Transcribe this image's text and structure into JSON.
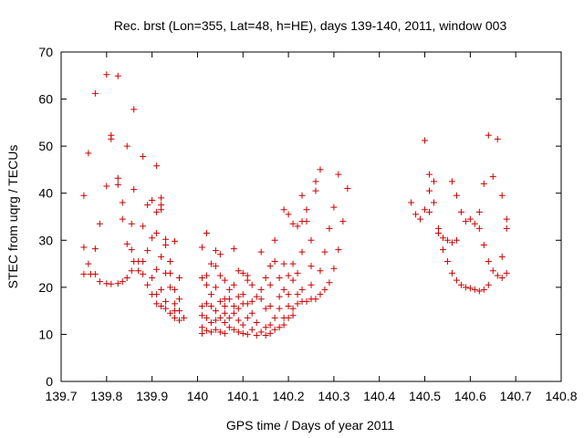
{
  "chart_data": {
    "type": "scatter",
    "title": "Rec. brst (Lon=355, Lat=48, h=HE), days 139-140, 2011, window 003",
    "xlabel": "GPS time / Days of year 2011",
    "ylabel": "STEC from uqrg / TECUs",
    "xlim": [
      139.7,
      140.8
    ],
    "ylim": [
      0,
      70
    ],
    "xticks": [
      "139.7",
      "139.8",
      "139.9",
      "140",
      "140.1",
      "140.2",
      "140.3",
      "140.4",
      "140.5",
      "140.6",
      "140.7",
      "140.8"
    ],
    "yticks": [
      "0",
      "10",
      "20",
      "30",
      "40",
      "50",
      "60",
      "70"
    ],
    "grid": false,
    "marker": "+",
    "series": [
      {
        "color": "#cc0000",
        "points": [
          [
            139.75,
            39.5
          ],
          [
            139.75,
            28.5
          ],
          [
            139.75,
            22.8
          ],
          [
            139.76,
            48.5
          ],
          [
            139.76,
            25.0
          ],
          [
            139.765,
            22.8
          ],
          [
            139.775,
            61.2
          ],
          [
            139.775,
            28.2
          ],
          [
            139.775,
            22.8
          ],
          [
            139.785,
            33.5
          ],
          [
            139.785,
            21.2
          ],
          [
            139.8,
            65.2
          ],
          [
            139.8,
            41.5
          ],
          [
            139.8,
            20.8
          ],
          [
            139.81,
            52.3
          ],
          [
            139.81,
            51.5
          ],
          [
            139.81,
            20.7
          ],
          [
            139.825,
            64.9
          ],
          [
            139.825,
            43.2
          ],
          [
            139.825,
            41.8
          ],
          [
            139.825,
            20.8
          ],
          [
            139.835,
            38.0
          ],
          [
            139.835,
            34.5
          ],
          [
            139.835,
            21.2
          ],
          [
            139.845,
            50.0
          ],
          [
            139.845,
            29.2
          ],
          [
            139.845,
            22.0
          ],
          [
            139.855,
            33.5
          ],
          [
            139.855,
            28.0
          ],
          [
            139.855,
            23.5
          ],
          [
            139.86,
            57.8
          ],
          [
            139.86,
            40.8
          ],
          [
            139.86,
            25.5
          ],
          [
            139.87,
            23.5
          ],
          [
            139.87,
            25.5
          ],
          [
            139.88,
            47.8
          ],
          [
            139.88,
            33.0
          ],
          [
            139.88,
            22.8
          ],
          [
            139.88,
            25.5
          ],
          [
            139.89,
            37.5
          ],
          [
            139.89,
            27.8
          ],
          [
            139.89,
            20.5
          ],
          [
            139.9,
            38.5
          ],
          [
            139.9,
            30.5
          ],
          [
            139.9,
            22.0
          ],
          [
            139.9,
            18.5
          ],
          [
            139.91,
            45.8
          ],
          [
            139.91,
            36.0
          ],
          [
            139.91,
            31.5
          ],
          [
            139.91,
            23.8
          ],
          [
            139.91,
            18.5
          ],
          [
            139.91,
            16.5
          ],
          [
            139.92,
            39.0
          ],
          [
            139.92,
            37.5
          ],
          [
            139.92,
            36.5
          ],
          [
            139.92,
            26.5
          ],
          [
            139.92,
            19.5
          ],
          [
            139.92,
            16.0
          ],
          [
            139.93,
            30.2
          ],
          [
            139.93,
            29.0
          ],
          [
            139.93,
            23.0
          ],
          [
            139.93,
            17.0
          ],
          [
            139.93,
            15.5
          ],
          [
            139.94,
            25.5
          ],
          [
            139.94,
            23.0
          ],
          [
            139.94,
            20.0
          ],
          [
            139.94,
            14.5
          ],
          [
            139.95,
            29.8
          ],
          [
            139.95,
            19.5
          ],
          [
            139.95,
            16.5
          ],
          [
            139.95,
            15.0
          ],
          [
            139.95,
            13.5
          ],
          [
            139.96,
            22.0
          ],
          [
            139.96,
            17.5
          ],
          [
            139.96,
            15.0
          ],
          [
            139.96,
            13.0
          ],
          [
            139.97,
            13.5
          ],
          [
            140.01,
            28.5
          ],
          [
            140.01,
            22.0
          ],
          [
            140.01,
            16.0
          ],
          [
            140.01,
            14.0
          ],
          [
            140.01,
            11.5
          ],
          [
            140.01,
            10.2
          ],
          [
            140.02,
            31.5
          ],
          [
            140.02,
            22.5
          ],
          [
            140.02,
            20.5
          ],
          [
            140.02,
            16.5
          ],
          [
            140.02,
            13.5
          ],
          [
            140.02,
            10.8
          ],
          [
            140.03,
            25.0
          ],
          [
            140.03,
            18.5
          ],
          [
            140.03,
            16.0
          ],
          [
            140.03,
            12.5
          ],
          [
            140.03,
            10.5
          ],
          [
            140.04,
            27.8
          ],
          [
            140.04,
            24.5
          ],
          [
            140.04,
            20.0
          ],
          [
            140.04,
            15.0
          ],
          [
            140.04,
            13.0
          ],
          [
            140.04,
            11.0
          ],
          [
            140.05,
            27.0
          ],
          [
            140.05,
            22.5
          ],
          [
            140.05,
            17.0
          ],
          [
            140.05,
            13.5
          ],
          [
            140.05,
            10.5
          ],
          [
            140.06,
            21.5
          ],
          [
            140.06,
            17.5
          ],
          [
            140.06,
            16.0
          ],
          [
            140.06,
            14.5
          ],
          [
            140.06,
            12.5
          ],
          [
            140.06,
            10.2
          ],
          [
            140.07,
            19.5
          ],
          [
            140.07,
            17.5
          ],
          [
            140.07,
            13.5
          ],
          [
            140.07,
            11.5
          ],
          [
            140.08,
            28.2
          ],
          [
            140.08,
            20.5
          ],
          [
            140.08,
            16.0
          ],
          [
            140.08,
            14.5
          ],
          [
            140.08,
            11.0
          ],
          [
            140.09,
            23.5
          ],
          [
            140.09,
            18.0
          ],
          [
            140.09,
            15.5
          ],
          [
            140.09,
            13.0
          ],
          [
            140.09,
            10.5
          ],
          [
            140.1,
            23.0
          ],
          [
            140.1,
            18.5
          ],
          [
            140.1,
            16.5
          ],
          [
            140.1,
            12.0
          ],
          [
            140.1,
            10.2
          ],
          [
            140.11,
            22.5
          ],
          [
            140.11,
            21.5
          ],
          [
            140.11,
            16.5
          ],
          [
            140.11,
            13.5
          ],
          [
            140.11,
            10.0
          ],
          [
            140.12,
            20.5
          ],
          [
            140.12,
            17.0
          ],
          [
            140.12,
            14.5
          ],
          [
            140.12,
            11.0
          ],
          [
            140.13,
            18.0
          ],
          [
            140.13,
            12.5
          ],
          [
            140.13,
            9.8
          ],
          [
            140.14,
            27.5
          ],
          [
            140.14,
            19.5
          ],
          [
            140.14,
            17.5
          ],
          [
            140.14,
            10.5
          ],
          [
            140.15,
            22.0
          ],
          [
            140.15,
            15.5
          ],
          [
            140.15,
            11.5
          ],
          [
            140.15,
            9.8
          ],
          [
            140.16,
            24.5
          ],
          [
            140.16,
            20.5
          ],
          [
            140.16,
            16.0
          ],
          [
            140.16,
            12.0
          ],
          [
            140.16,
            10.2
          ],
          [
            140.17,
            30.0
          ],
          [
            140.17,
            25.5
          ],
          [
            140.17,
            13.5
          ],
          [
            140.17,
            11.0
          ],
          [
            140.18,
            22.0
          ],
          [
            140.18,
            18.0
          ],
          [
            140.18,
            15.5
          ],
          [
            140.18,
            11.5
          ],
          [
            140.19,
            36.5
          ],
          [
            140.19,
            25.0
          ],
          [
            140.19,
            19.5
          ],
          [
            140.19,
            13.5
          ],
          [
            140.19,
            12.0
          ],
          [
            140.2,
            35.5
          ],
          [
            140.2,
            22.5
          ],
          [
            140.2,
            18.5
          ],
          [
            140.2,
            16.0
          ],
          [
            140.2,
            13.5
          ],
          [
            140.21,
            33.5
          ],
          [
            140.21,
            25.0
          ],
          [
            140.21,
            21.5
          ],
          [
            140.21,
            15.5
          ],
          [
            140.21,
            14.0
          ],
          [
            140.22,
            33.0
          ],
          [
            140.22,
            23.0
          ],
          [
            140.22,
            18.5
          ],
          [
            140.22,
            16.5
          ],
          [
            140.23,
            39.5
          ],
          [
            140.23,
            34.0
          ],
          [
            140.23,
            27.5
          ],
          [
            140.23,
            19.5
          ],
          [
            140.23,
            17.0
          ],
          [
            140.24,
            36.5
          ],
          [
            140.24,
            34.0
          ],
          [
            140.24,
            17.0
          ],
          [
            140.25,
            30.0
          ],
          [
            140.25,
            24.5
          ],
          [
            140.25,
            20.5
          ],
          [
            140.25,
            17.5
          ],
          [
            140.26,
            42.5
          ],
          [
            140.26,
            40.5
          ],
          [
            140.26,
            17.5
          ],
          [
            140.27,
            45.0
          ],
          [
            140.27,
            23.5
          ],
          [
            140.27,
            18.5
          ],
          [
            140.28,
            27.5
          ],
          [
            140.28,
            19.5
          ],
          [
            140.29,
            32.5
          ],
          [
            140.29,
            21.0
          ],
          [
            140.3,
            37.0
          ],
          [
            140.3,
            24.0
          ],
          [
            140.31,
            44.0
          ],
          [
            140.31,
            28.0
          ],
          [
            140.32,
            34.0
          ],
          [
            140.33,
            41.0
          ],
          [
            140.47,
            38.0
          ],
          [
            140.48,
            35.5
          ],
          [
            140.49,
            34.5
          ],
          [
            140.5,
            51.2
          ],
          [
            140.5,
            36.5
          ],
          [
            140.51,
            44.0
          ],
          [
            140.51,
            40.5
          ],
          [
            140.51,
            36.0
          ],
          [
            140.52,
            42.5
          ],
          [
            140.52,
            38.0
          ],
          [
            140.53,
            32.5
          ],
          [
            140.53,
            31.5
          ],
          [
            140.54,
            30.5
          ],
          [
            140.54,
            28.0
          ],
          [
            140.55,
            30.0
          ],
          [
            140.55,
            25.5
          ],
          [
            140.56,
            42.5
          ],
          [
            140.56,
            29.5
          ],
          [
            140.56,
            23.0
          ],
          [
            140.57,
            39.5
          ],
          [
            140.57,
            30.0
          ],
          [
            140.57,
            21.5
          ],
          [
            140.58,
            36.0
          ],
          [
            140.58,
            20.5
          ],
          [
            140.59,
            34.0
          ],
          [
            140.59,
            20.0
          ],
          [
            140.6,
            34.5
          ],
          [
            140.6,
            19.8
          ],
          [
            140.61,
            33.5
          ],
          [
            140.61,
            19.5
          ],
          [
            140.62,
            36.0
          ],
          [
            140.62,
            19.2
          ],
          [
            140.62,
            32.5
          ],
          [
            140.63,
            42.0
          ],
          [
            140.63,
            29.0
          ],
          [
            140.63,
            19.5
          ],
          [
            140.64,
            52.3
          ],
          [
            140.64,
            25.5
          ],
          [
            140.64,
            20.5
          ],
          [
            140.65,
            43.5
          ],
          [
            140.65,
            23.5
          ],
          [
            140.66,
            51.5
          ],
          [
            140.66,
            22.5
          ],
          [
            140.67,
            39.5
          ],
          [
            140.67,
            26.5
          ],
          [
            140.67,
            22.0
          ],
          [
            140.68,
            34.5
          ],
          [
            140.68,
            32.5
          ],
          [
            140.68,
            23.0
          ]
        ]
      }
    ]
  }
}
